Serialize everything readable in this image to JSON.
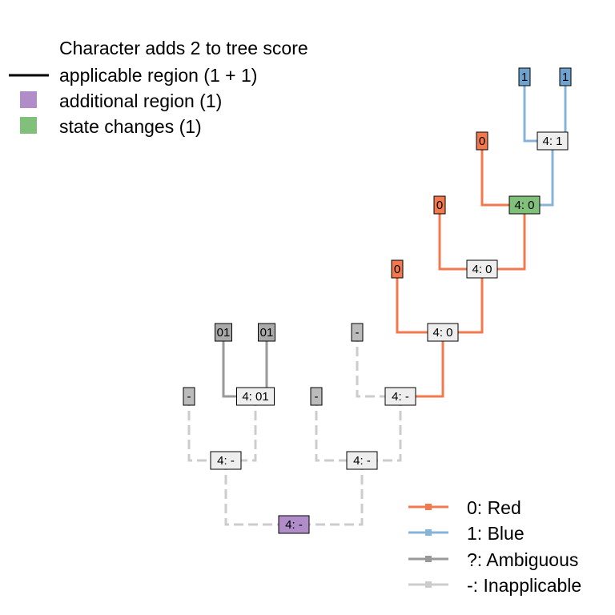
{
  "score_legend": {
    "title": "Character adds 2 to tree score",
    "items": [
      {
        "key": "applicable",
        "label": "applicable region (1 + 1)",
        "kind": "line",
        "color": "#000000"
      },
      {
        "key": "additional",
        "label": "additional region (1)",
        "kind": "square",
        "color": "#b08dc9"
      },
      {
        "key": "changes",
        "label": "state changes (1)",
        "kind": "square",
        "color": "#80c07a"
      }
    ]
  },
  "state_legend": {
    "items": [
      {
        "key": "red",
        "label": "0: Red",
        "color": "#f4784d"
      },
      {
        "key": "blue",
        "label": "1: Blue",
        "color": "#85b4d8"
      },
      {
        "key": "ambiguous",
        "label": "?: Ambiguous",
        "color": "#999999"
      },
      {
        "key": "inapplicable",
        "label": "-: Inapplicable",
        "color": "#cccccc"
      }
    ]
  },
  "tips": [
    {
      "id": "t1",
      "label": "1",
      "state": "blue"
    },
    {
      "id": "t2",
      "label": "1",
      "state": "blue"
    },
    {
      "id": "t3",
      "label": "0",
      "state": "red"
    },
    {
      "id": "t4",
      "label": "0",
      "state": "red"
    },
    {
      "id": "t5",
      "label": "0",
      "state": "red"
    },
    {
      "id": "t6",
      "label": "-",
      "state": "inapplicable"
    },
    {
      "id": "t7",
      "label": "01",
      "state": "ambiguous"
    },
    {
      "id": "t8",
      "label": "01",
      "state": "ambiguous"
    },
    {
      "id": "t9",
      "label": "-",
      "state": "inapplicable"
    },
    {
      "id": "t10",
      "label": "-",
      "state": "inapplicable"
    }
  ],
  "internal_nodes": [
    {
      "id": "n1",
      "label": "4: 1",
      "fill": "#eeeeee"
    },
    {
      "id": "n2",
      "label": "4: 0",
      "fill": "#80c07a"
    },
    {
      "id": "n3",
      "label": "4: 0",
      "fill": "#eeeeee"
    },
    {
      "id": "n4",
      "label": "4: 0",
      "fill": "#eeeeee"
    },
    {
      "id": "n5",
      "label": "4: -",
      "fill": "#eeeeee"
    },
    {
      "id": "n6",
      "label": "4: 01",
      "fill": "#eeeeee"
    },
    {
      "id": "n7",
      "label": "4: -",
      "fill": "#eeeeee"
    },
    {
      "id": "n8",
      "label": "4: -",
      "fill": "#eeeeee"
    },
    {
      "id": "root",
      "label": "4: -",
      "fill": "#b08dc9"
    }
  ],
  "edges": [
    {
      "from": "n1",
      "to": "t1",
      "state": "blue"
    },
    {
      "from": "n1",
      "to": "t2",
      "state": "blue"
    },
    {
      "from": "n2",
      "to": "t3",
      "state": "red"
    },
    {
      "from": "n2",
      "to": "n1",
      "state": "blue"
    },
    {
      "from": "n3",
      "to": "t4",
      "state": "red"
    },
    {
      "from": "n3",
      "to": "n2",
      "state": "red"
    },
    {
      "from": "n4",
      "to": "t5",
      "state": "red"
    },
    {
      "from": "n4",
      "to": "n3",
      "state": "red"
    },
    {
      "from": "n5",
      "to": "t6",
      "state": "inapplicable"
    },
    {
      "from": "n5",
      "to": "n4",
      "state": "red"
    },
    {
      "from": "n6",
      "to": "t7",
      "state": "ambiguous"
    },
    {
      "from": "n6",
      "to": "t8",
      "state": "ambiguous"
    },
    {
      "from": "n7",
      "to": "t9",
      "state": "inapplicable"
    },
    {
      "from": "n7",
      "to": "n6",
      "state": "inapplicable"
    },
    {
      "from": "n8",
      "to": "t10",
      "state": "inapplicable"
    },
    {
      "from": "n8",
      "to": "n5",
      "state": "inapplicable"
    },
    {
      "from": "root",
      "to": "n7",
      "state": "inapplicable"
    },
    {
      "from": "root",
      "to": "n8",
      "state": "inapplicable"
    }
  ]
}
